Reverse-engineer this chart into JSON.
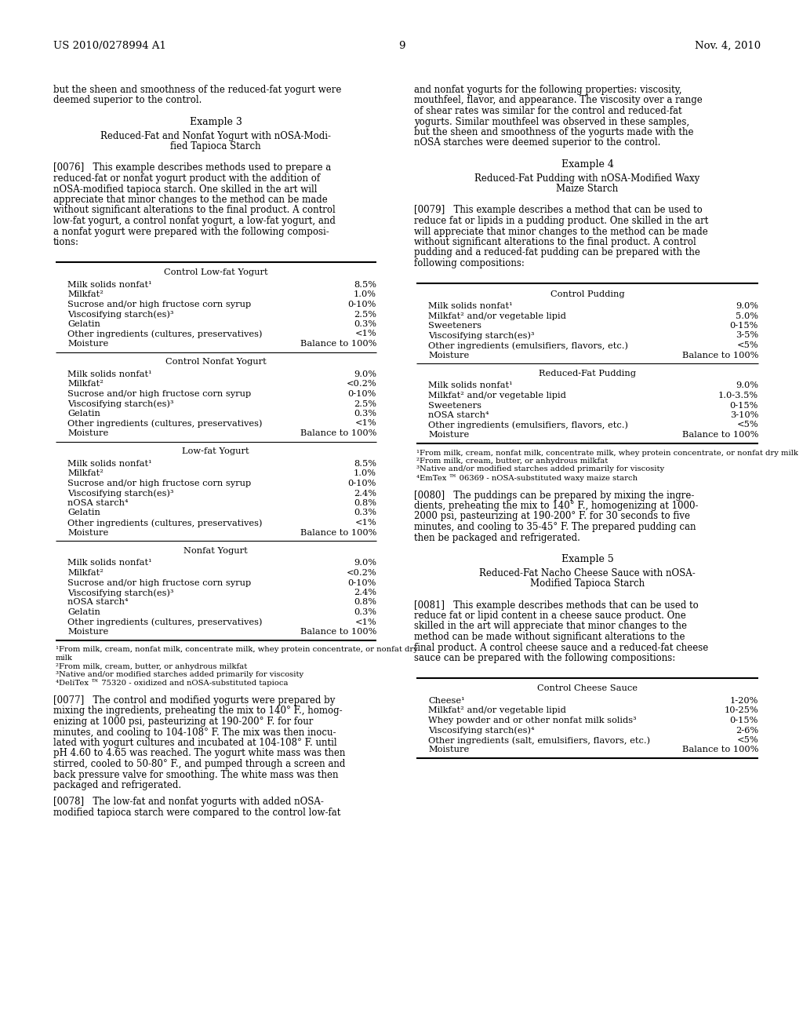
{
  "page_header_left": "US 2010/0278994 A1",
  "page_header_right": "Nov. 4, 2010",
  "page_number": "9",
  "background_color": "#ffffff",
  "left_column": {
    "intro_lines": [
      "but the sheen and smoothness of the reduced-fat yogurt were",
      "deemed superior to the control."
    ],
    "example3_title": "Example 3",
    "example3_subtitle_lines": [
      "Reduced-Fat and Nonfat Yogurt with nOSA-Modi-",
      "fied Tapioca Starch"
    ],
    "para0076_lines": [
      "[0076]   This example describes methods used to prepare a",
      "reduced-fat or nonfat yogurt product with the addition of",
      "nOSA-modified tapioca starch. One skilled in the art will",
      "appreciate that minor changes to the method can be made",
      "without significant alterations to the final product. A control",
      "low-fat yogurt, a control nonfat yogurt, a low-fat yogurt, and",
      "a nonfat yogurt were prepared with the following composi-",
      "tions:"
    ],
    "tables": [
      {
        "section_title": "Control Low-fat Yogurt",
        "rows": [
          [
            "Milk solids nonfat¹",
            "8.5%"
          ],
          [
            "Milkfat²",
            "1.0%"
          ],
          [
            "Sucrose and/or high fructose corn syrup",
            "0-10%"
          ],
          [
            "Viscosifying starch(es)³",
            "2.5%"
          ],
          [
            "Gelatin",
            "0.3%"
          ],
          [
            "Other ingredients (cultures, preservatives)",
            "<1%"
          ],
          [
            "Moisture",
            "Balance to 100%"
          ]
        ]
      },
      {
        "section_title": "Control Nonfat Yogurt",
        "rows": [
          [
            "Milk solids nonfat¹",
            "9.0%"
          ],
          [
            "Milkfat²",
            "<0.2%"
          ],
          [
            "Sucrose and/or high fructose corn syrup",
            "0-10%"
          ],
          [
            "Viscosifying starch(es)³",
            "2.5%"
          ],
          [
            "Gelatin",
            "0.3%"
          ],
          [
            "Other ingredients (cultures, preservatives)",
            "<1%"
          ],
          [
            "Moisture",
            "Balance to 100%"
          ]
        ]
      },
      {
        "section_title": "Low-fat Yogurt",
        "rows": [
          [
            "Milk solids nonfat¹",
            "8.5%"
          ],
          [
            "Milkfat²",
            "1.0%"
          ],
          [
            "Sucrose and/or high fructose corn syrup",
            "0-10%"
          ],
          [
            "Viscosifying starch(es)³",
            "2.4%"
          ],
          [
            "nOSA starch⁴",
            "0.8%"
          ],
          [
            "Gelatin",
            "0.3%"
          ],
          [
            "Other ingredients (cultures, preservatives)",
            "<1%"
          ],
          [
            "Moisture",
            "Balance to 100%"
          ]
        ]
      },
      {
        "section_title": "Nonfat Yogurt",
        "rows": [
          [
            "Milk solids nonfat¹",
            "9.0%"
          ],
          [
            "Milkfat²",
            "<0.2%"
          ],
          [
            "Sucrose and/or high fructose corn syrup",
            "0-10%"
          ],
          [
            "Viscosifying starch(es)³",
            "2.4%"
          ],
          [
            "nOSA starch⁴",
            "0.8%"
          ],
          [
            "Gelatin",
            "0.3%"
          ],
          [
            "Other ingredients (cultures, preservatives)",
            "<1%"
          ],
          [
            "Moisture",
            "Balance to 100%"
          ]
        ]
      }
    ],
    "footnotes": [
      "¹From milk, cream, nonfat milk, concentrate milk, whey protein concentrate, or nonfat dry",
      "milk",
      "²From milk, cream, butter, or anhydrous milkfat",
      "³Native and/or modified starches added primarily for viscosity",
      "⁴DeliTex ™ 75320 - oxidized and nOSA-substituted tapioca"
    ],
    "para0077_lines": [
      "[0077]   The control and modified yogurts were prepared by",
      "mixing the ingredients, preheating the mix to 140° F., homog-",
      "enizing at 1000 psi, pasteurizing at 190-200° F. for four",
      "minutes, and cooling to 104-108° F. The mix was then inocu-",
      "lated with yogurt cultures and incubated at 104-108° F. until",
      "pH 4.60 to 4.65 was reached. The yogurt white mass was then",
      "stirred, cooled to 50-80° F., and pumped through a screen and",
      "back pressure valve for smoothing. The white mass was then",
      "packaged and refrigerated."
    ],
    "para0078_lines": [
      "[0078]   The low-fat and nonfat yogurts with added nOSA-",
      "modified tapioca starch were compared to the control low-fat"
    ]
  },
  "right_column": {
    "intro_lines": [
      "and nonfat yogurts for the following properties: viscosity,",
      "mouthfeel, flavor, and appearance. The viscosity over a range",
      "of shear rates was similar for the control and reduced-fat",
      "yogurts. Similar mouthfeel was observed in these samples,",
      "but the sheen and smoothness of the yogurts made with the",
      "nOSA starches were deemed superior to the control."
    ],
    "example4_title": "Example 4",
    "example4_subtitle_lines": [
      "Reduced-Fat Pudding with nOSA-Modified Waxy",
      "Maize Starch"
    ],
    "para0079_lines": [
      "[0079]   This example describes a method that can be used to",
      "reduce fat or lipids in a pudding product. One skilled in the art",
      "will appreciate that minor changes to the method can be made",
      "without significant alterations to the final product. A control",
      "pudding and a reduced-fat pudding can be prepared with the",
      "following compositions:"
    ],
    "tables": [
      {
        "section_title": "Control Pudding",
        "rows": [
          [
            "Milk solids nonfat¹",
            "9.0%"
          ],
          [
            "Milkfat² and/or vegetable lipid",
            "5.0%"
          ],
          [
            "Sweeteners",
            "0-15%"
          ],
          [
            "Viscosifying starch(es)³",
            "3-5%"
          ],
          [
            "Other ingredients (emulsifiers, flavors, etc.)",
            "<5%"
          ],
          [
            "Moisture",
            "Balance to 100%"
          ]
        ]
      },
      {
        "section_title": "Reduced-Fat Pudding",
        "rows": [
          [
            "Milk solids nonfat¹",
            "9.0%"
          ],
          [
            "Milkfat² and/or vegetable lipid",
            "1.0-3.5%"
          ],
          [
            "Sweeteners",
            "0-15%"
          ],
          [
            "nOSA starch⁴",
            "3-10%"
          ],
          [
            "Other ingredients (emulsifiers, flavors, etc.)",
            "<5%"
          ],
          [
            "Moisture",
            "Balance to 100%"
          ]
        ]
      }
    ],
    "footnotes": [
      "¹From milk, cream, nonfat milk, concentrate milk, whey protein concentrate, or nonfat dry milk",
      "²From milk, cream, butter, or anhydrous milkfat",
      "³Native and/or modified starches added primarily for viscosity",
      "⁴EmTex ™ 06369 - nOSA-substituted waxy maize starch"
    ],
    "para0080_lines": [
      "[0080]   The puddings can be prepared by mixing the ingre-",
      "dients, preheating the mix to 140° F., homogenizing at 1000-",
      "2000 psi, pasteurizing at 190-200° F. for 30 seconds to five",
      "minutes, and cooling to 35-45° F. The prepared pudding can",
      "then be packaged and refrigerated."
    ],
    "example5_title": "Example 5",
    "example5_subtitle_lines": [
      "Reduced-Fat Nacho Cheese Sauce with nOSA-",
      "Modified Tapioca Starch"
    ],
    "para0081_lines": [
      "[0081]   This example describes methods that can be used to",
      "reduce fat or lipid content in a cheese sauce product. One",
      "skilled in the art will appreciate that minor changes to the",
      "method can be made without significant alterations to the",
      "final product. A control cheese sauce and a reduced-fat cheese",
      "sauce can be prepared with the following compositions:"
    ],
    "tables2": [
      {
        "section_title": "Control Cheese Sauce",
        "rows": [
          [
            "Cheese¹",
            "1-20%"
          ],
          [
            "Milkfat² and/or vegetable lipid",
            "10-25%"
          ],
          [
            "Whey powder and or other nonfat milk solids³",
            "0-15%"
          ],
          [
            "Viscosifying starch(es)⁴",
            "2-6%"
          ],
          [
            "Other ingredients (salt, emulsifiers, flavors, etc.)",
            "<5%"
          ],
          [
            "Moisture",
            "Balance to 100%"
          ]
        ]
      }
    ]
  }
}
